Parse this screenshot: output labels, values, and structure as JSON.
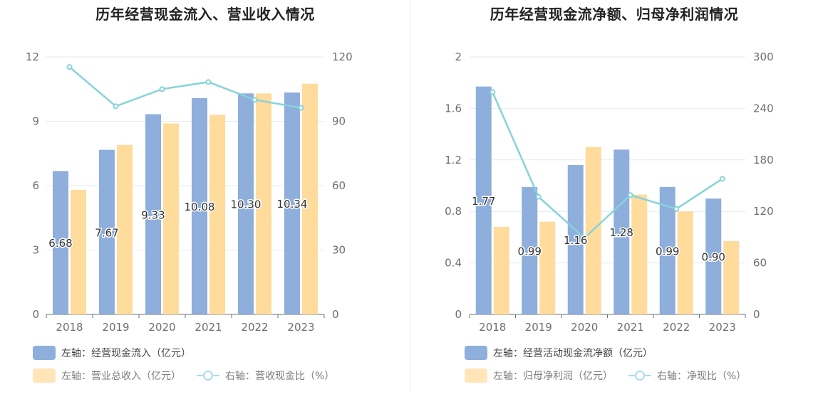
{
  "charts": [
    {
      "type": "bar",
      "title": "历年经营现金流入、营业收入情况",
      "categories": [
        "2018",
        "2019",
        "2020",
        "2021",
        "2022",
        "2023"
      ],
      "left_axis": {
        "min": 0,
        "max": 12,
        "ticks": [
          "0",
          "3",
          "6",
          "9",
          "12"
        ]
      },
      "right_axis": {
        "min": 0,
        "max": 120,
        "ticks": [
          "0",
          "30",
          "60",
          "90",
          "120"
        ]
      },
      "series": [
        {
          "name": "左轴：经营现金流入（亿元）",
          "type": "bar",
          "axis": "left",
          "color": "#8eaedb",
          "values": [
            6.68,
            7.67,
            9.33,
            10.08,
            10.3,
            10.34
          ],
          "labels": [
            "6.68",
            "7.67",
            "9.33",
            "10.08",
            "10.30",
            "10.34"
          ]
        },
        {
          "name": "左轴：营业总收入（亿元）",
          "type": "bar",
          "axis": "left",
          "color": "#ffdb9c",
          "values": [
            5.8,
            7.9,
            8.9,
            9.3,
            10.3,
            10.75
          ]
        },
        {
          "name": "右轴：营收现金比（%）",
          "type": "line",
          "axis": "right",
          "color": "#86d3da",
          "values": [
            115.3,
            97.0,
            105.0,
            108.3,
            100.0,
            96.3
          ]
        }
      ]
    },
    {
      "type": "bar",
      "title": "历年经营现金流净额、归母净利润情况",
      "categories": [
        "2018",
        "2019",
        "2020",
        "2021",
        "2022",
        "2023"
      ],
      "left_axis": {
        "min": 0,
        "max": 2,
        "ticks": [
          "0",
          "0.4",
          "0.8",
          "1.2",
          "1.6",
          "2"
        ]
      },
      "right_axis": {
        "min": 0,
        "max": 300,
        "ticks": [
          "0",
          "60",
          "120",
          "180",
          "240",
          "300"
        ]
      },
      "series": [
        {
          "name": "左轴：经营活动现金流净额（亿元）",
          "type": "bar",
          "axis": "left",
          "color": "#8eaedb",
          "values": [
            1.77,
            0.99,
            1.16,
            1.28,
            0.99,
            0.9
          ],
          "labels": [
            "1.77",
            "0.99",
            "1.16",
            "1.28",
            "0.99",
            "0.90"
          ]
        },
        {
          "name": "左轴：归母净利润（亿元）",
          "type": "bar",
          "axis": "left",
          "color": "#ffdb9c",
          "values": [
            0.68,
            0.72,
            1.3,
            0.93,
            0.8,
            0.57
          ]
        },
        {
          "name": "右轴：净现比（%）",
          "type": "line",
          "axis": "right",
          "color": "#86d3da",
          "values": [
            259,
            137,
            89,
            139,
            123,
            158
          ]
        }
      ]
    }
  ]
}
